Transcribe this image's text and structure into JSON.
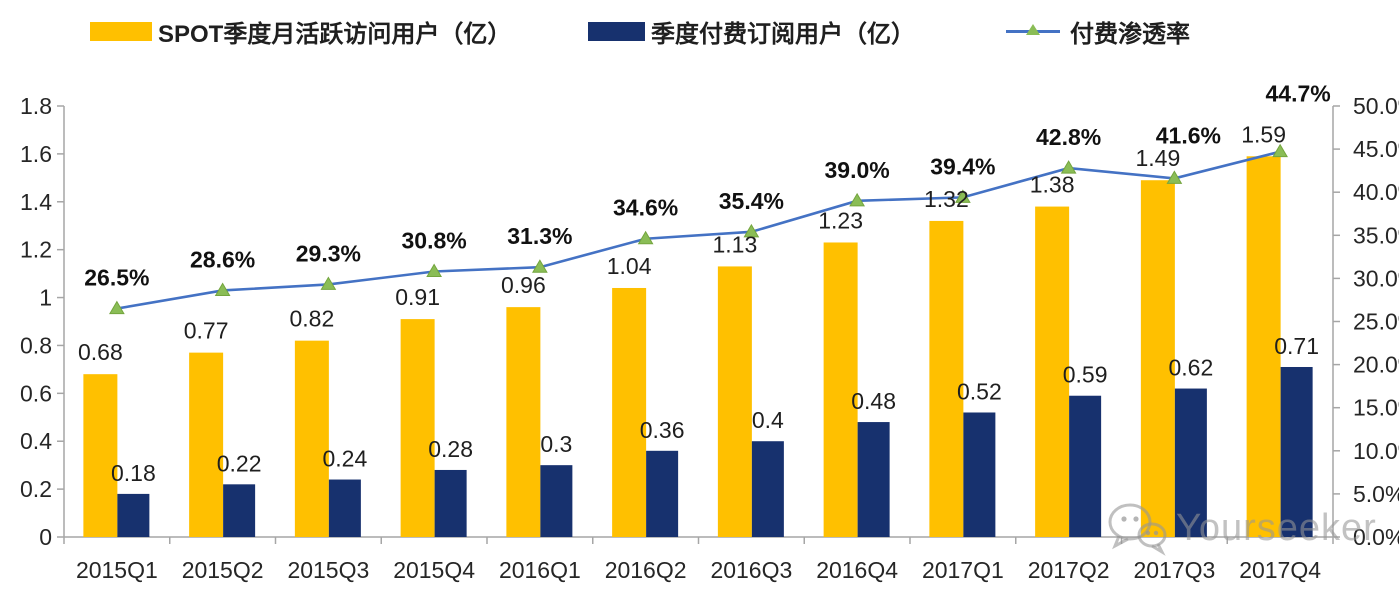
{
  "watermark": {
    "text": "Yourseeker",
    "icon": "wechat-icon"
  },
  "chart_data": {
    "type": "bar",
    "subtype": "combo-bar-line",
    "title": "",
    "xlabel": "",
    "ylabel_left": "",
    "ylabel_right": "",
    "grid": false,
    "legend_position": "top",
    "categories": [
      "2015Q1",
      "2015Q2",
      "2015Q3",
      "2015Q4",
      "2016Q1",
      "2016Q2",
      "2016Q3",
      "2016Q4",
      "2017Q1",
      "2017Q2",
      "2017Q3",
      "2017Q4"
    ],
    "series": [
      {
        "name": "SPOT季度月活跃访问用户（亿）",
        "type": "bar",
        "axis": "left",
        "color": "#FFC000",
        "values": [
          0.68,
          0.77,
          0.82,
          0.91,
          0.96,
          1.04,
          1.13,
          1.23,
          1.32,
          1.38,
          1.49,
          1.59
        ],
        "labels": [
          "0.68",
          "0.77",
          "0.82",
          "0.91",
          "0.96",
          "1.04",
          "1.13",
          "1.23",
          "1.32",
          "1.38",
          "1.49",
          "1.59"
        ]
      },
      {
        "name": "季度付费订阅用户（亿）",
        "type": "bar",
        "axis": "left",
        "color": "#17316E",
        "values": [
          0.18,
          0.22,
          0.24,
          0.28,
          0.3,
          0.36,
          0.4,
          0.48,
          0.52,
          0.59,
          0.62,
          0.71
        ],
        "labels": [
          "0.18",
          "0.22",
          "0.24",
          "0.28",
          "0.3",
          "0.36",
          "0.4",
          "0.48",
          "0.52",
          "0.59",
          "0.62",
          "0.71"
        ]
      },
      {
        "name": "付费渗透率",
        "type": "line",
        "axis": "right",
        "color": "#4472C4",
        "marker": "triangle",
        "marker_color": "#8ABD56",
        "marker_edge": "#74A53E",
        "values": [
          26.5,
          28.6,
          29.3,
          30.8,
          31.3,
          34.6,
          35.4,
          39.0,
          39.4,
          42.8,
          41.6,
          44.7
        ],
        "labels": [
          "26.5%",
          "28.6%",
          "29.3%",
          "30.8%",
          "31.3%",
          "34.6%",
          "35.4%",
          "39.0%",
          "39.4%",
          "42.8%",
          "41.6%",
          "44.7%"
        ]
      }
    ],
    "left_axis": {
      "min": 0,
      "max": 1.8,
      "tick_labels": [
        "0",
        "0.2",
        "0.4",
        "0.6",
        "0.8",
        "1",
        "1.2",
        "1.4",
        "1.6",
        "1.8"
      ]
    },
    "right_axis": {
      "min": 0,
      "max": 50,
      "tick_labels": [
        "0.0%",
        "5.0%",
        "10.0%",
        "15.0%",
        "20.0%",
        "25.0%",
        "30.0%",
        "35.0%",
        "40.0%",
        "45.0%",
        "50.0%"
      ]
    }
  }
}
